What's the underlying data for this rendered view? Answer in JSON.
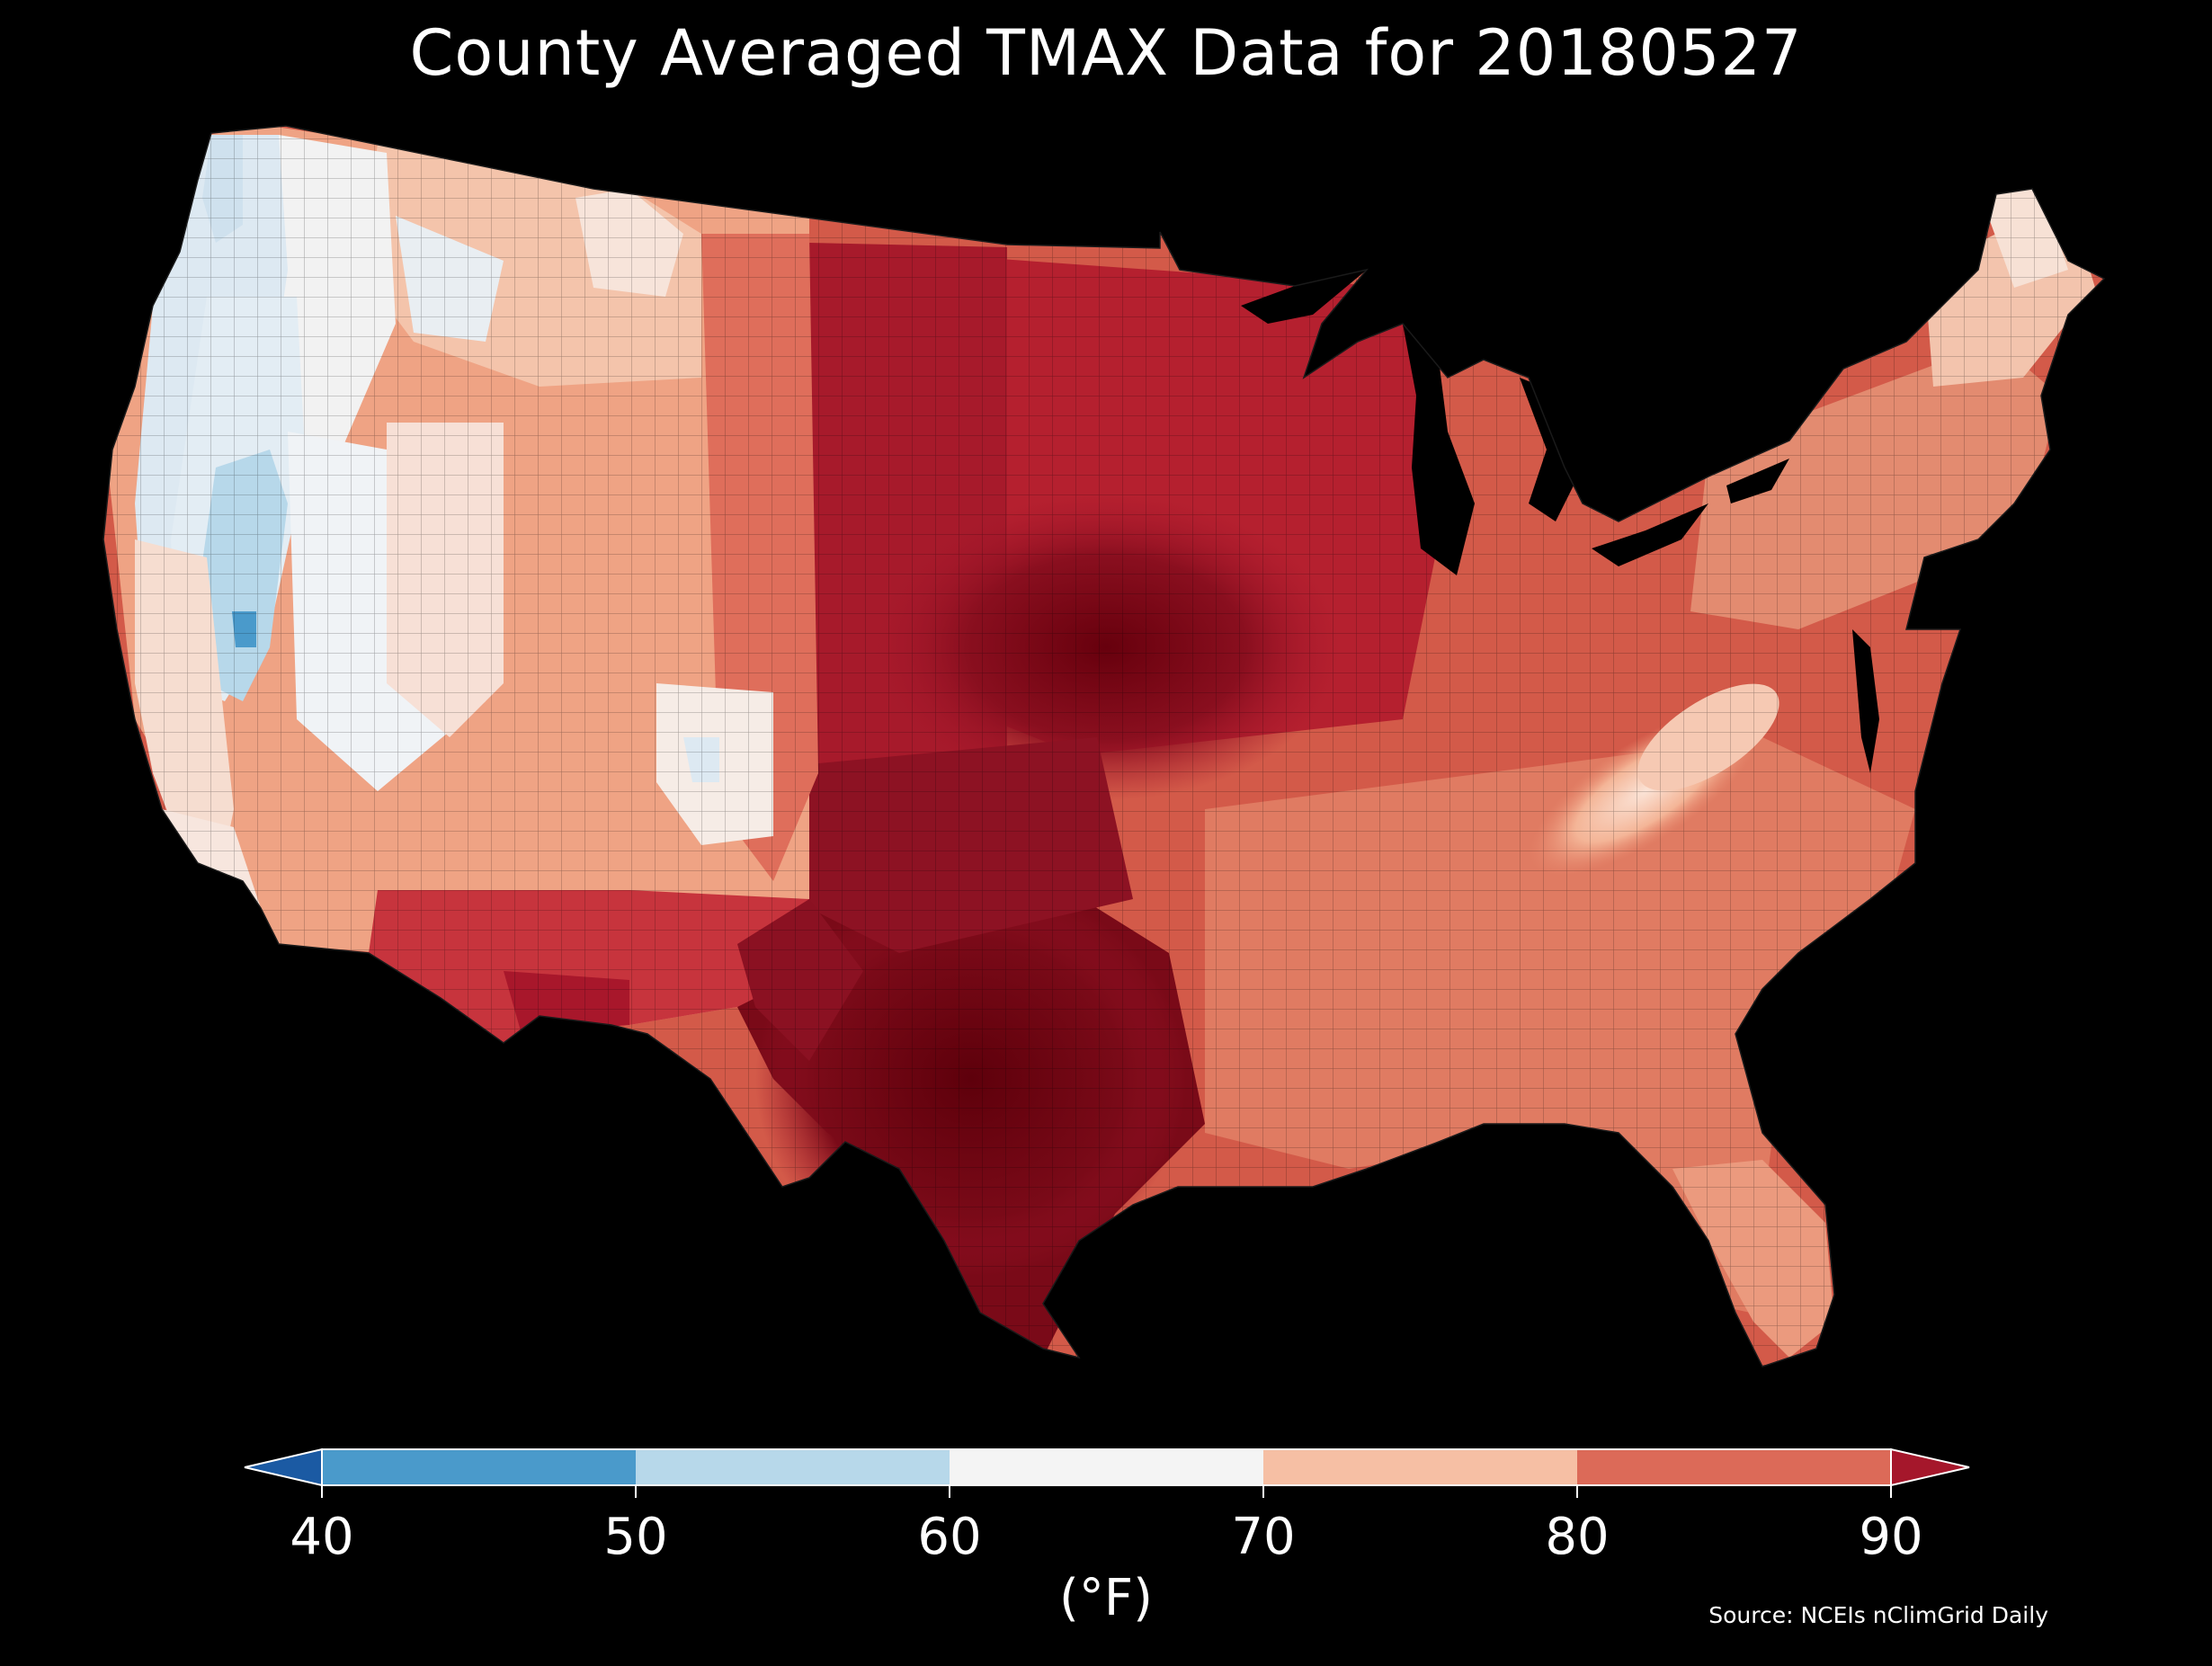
{
  "title": "County Averaged TMAX Data for 20180527",
  "colorbar": {
    "ticks": [
      "40",
      "50",
      "60",
      "70",
      "80",
      "90"
    ],
    "unit": "(°F)",
    "bins": [
      {
        "range": "<40",
        "color": "#1b5aa3"
      },
      {
        "range": "40-50",
        "color": "#4a9acb"
      },
      {
        "range": "50-60",
        "color": "#b7d8ea"
      },
      {
        "range": "60-70",
        "color": "#f4f4f4"
      },
      {
        "range": "70-80",
        "color": "#f6bfa4"
      },
      {
        "range": "80-90",
        "color": "#dc6a58"
      },
      {
        "range": ">90",
        "color": "#a5172b"
      }
    ]
  },
  "source": "Source: NCEIs nClimGrid Daily",
  "map": {
    "region": "Contiguous United States",
    "variable": "TMAX",
    "regions": [
      {
        "name": "Pacific Northwest coast",
        "range": "50-60"
      },
      {
        "name": "Great Basin interior",
        "range": "50-60"
      },
      {
        "name": "Northern Rockies",
        "range": "60-70"
      },
      {
        "name": "California coast",
        "range": "60-70"
      },
      {
        "name": "Colorado high country",
        "range": "60-70"
      },
      {
        "name": "Southwest desert",
        "range": "70-80"
      },
      {
        "name": "Northern Plains",
        "range": "80-90"
      },
      {
        "name": "Central Plains",
        "range": ">90"
      },
      {
        "name": "Texas",
        "range": ">90"
      },
      {
        "name": "Midwest",
        "range": "80-90"
      },
      {
        "name": "Southeast",
        "range": "80-90"
      },
      {
        "name": "Appalachians",
        "range": "70-80"
      },
      {
        "name": "Northeast",
        "range": "80-90"
      },
      {
        "name": "Northern Maine",
        "range": "60-70"
      }
    ]
  }
}
